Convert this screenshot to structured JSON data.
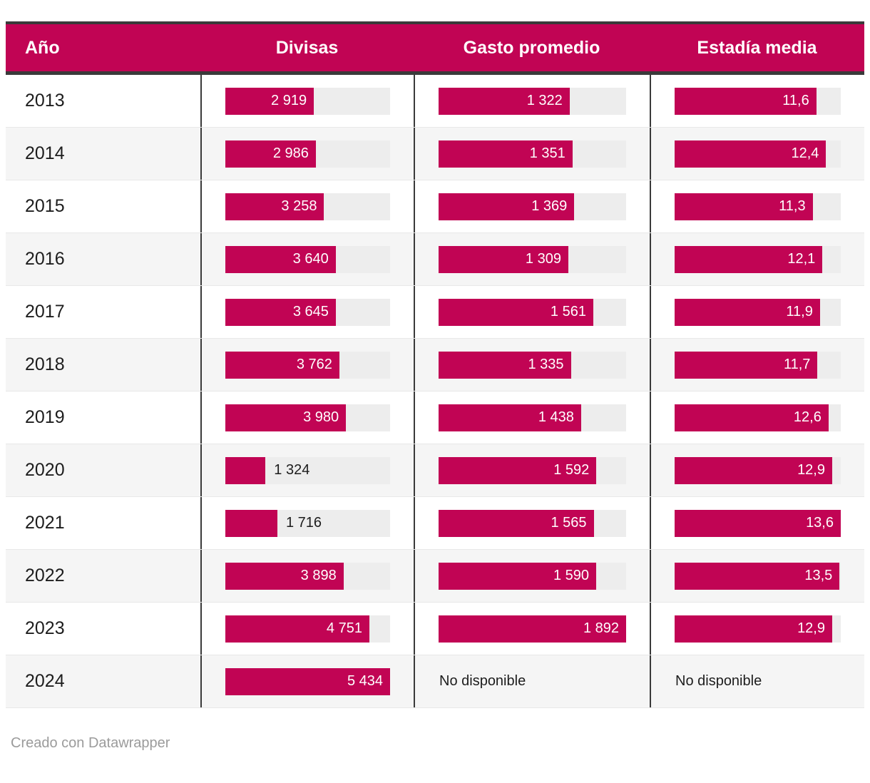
{
  "header": {
    "columns": [
      "Año",
      "Divisas",
      "Gasto promedio",
      "Estadía media"
    ]
  },
  "not_available_label": "No disponible",
  "footer": {
    "credit": "Creado con Datawrapper"
  },
  "colors": {
    "accent": "#C10454",
    "track": "#EDEDED",
    "dark_border": "#3A3A3A",
    "zebra": "#F5F5F5",
    "row_divider": "#E8E8E8",
    "footer_text": "#9B9B9B"
  },
  "chart_data": {
    "type": "table",
    "title": "",
    "columns": [
      "Año",
      "Divisas",
      "Gasto promedio",
      "Estadía media"
    ],
    "maxima": {
      "divisas": 5434,
      "gasto": 1892,
      "estadia": 13.6
    },
    "rows": [
      {
        "year": "2013",
        "divisas": 2919,
        "divisas_label": "2 919",
        "gasto": 1322,
        "gasto_label": "1 322",
        "estadia": 11.6,
        "estadia_label": "11,6"
      },
      {
        "year": "2014",
        "divisas": 2986,
        "divisas_label": "2 986",
        "gasto": 1351,
        "gasto_label": "1 351",
        "estadia": 12.4,
        "estadia_label": "12,4"
      },
      {
        "year": "2015",
        "divisas": 3258,
        "divisas_label": "3 258",
        "gasto": 1369,
        "gasto_label": "1 369",
        "estadia": 11.3,
        "estadia_label": "11,3"
      },
      {
        "year": "2016",
        "divisas": 3640,
        "divisas_label": "3 640",
        "gasto": 1309,
        "gasto_label": "1 309",
        "estadia": 12.1,
        "estadia_label": "12,1"
      },
      {
        "year": "2017",
        "divisas": 3645,
        "divisas_label": "3 645",
        "gasto": 1561,
        "gasto_label": "1 561",
        "estadia": 11.9,
        "estadia_label": "11,9"
      },
      {
        "year": "2018",
        "divisas": 3762,
        "divisas_label": "3 762",
        "gasto": 1335,
        "gasto_label": "1 335",
        "estadia": 11.7,
        "estadia_label": "11,7"
      },
      {
        "year": "2019",
        "divisas": 3980,
        "divisas_label": "3 980",
        "gasto": 1438,
        "gasto_label": "1 438",
        "estadia": 12.6,
        "estadia_label": "12,6"
      },
      {
        "year": "2020",
        "divisas": 1324,
        "divisas_label": "1 324",
        "gasto": 1592,
        "gasto_label": "1 592",
        "estadia": 12.9,
        "estadia_label": "12,9"
      },
      {
        "year": "2021",
        "divisas": 1716,
        "divisas_label": "1 716",
        "gasto": 1565,
        "gasto_label": "1 565",
        "estadia": 13.6,
        "estadia_label": "13,6"
      },
      {
        "year": "2022",
        "divisas": 3898,
        "divisas_label": "3 898",
        "gasto": 1590,
        "gasto_label": "1 590",
        "estadia": 13.5,
        "estadia_label": "13,5"
      },
      {
        "year": "2023",
        "divisas": 4751,
        "divisas_label": "4 751",
        "gasto": 1892,
        "gasto_label": "1 892",
        "estadia": 12.9,
        "estadia_label": "12,9"
      },
      {
        "year": "2024",
        "divisas": 5434,
        "divisas_label": "5 434",
        "gasto": null,
        "gasto_label": null,
        "estadia": null,
        "estadia_label": null
      }
    ]
  }
}
